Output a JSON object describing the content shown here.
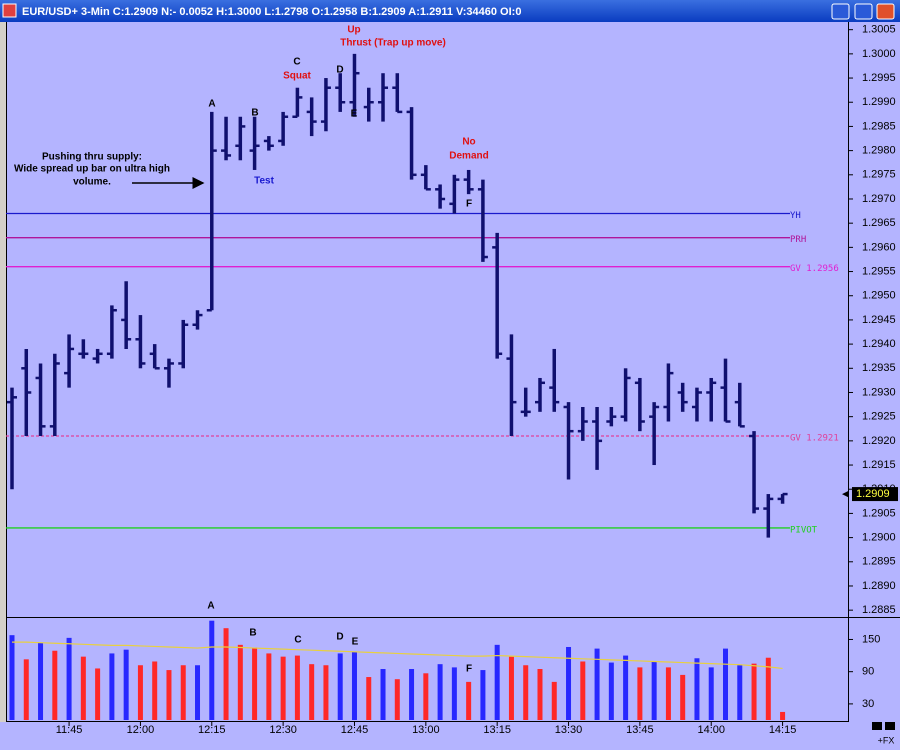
{
  "window": {
    "title": "EUR/USD+ 3-Min C:1.2909 N:- 0.0052 H:1.3000 L:1.2798 O:1.2958 B:1.2909 A:1.2911 V:34460 OI:0",
    "footer": "+FX"
  },
  "chart_data": [
    {
      "type": "ohlc",
      "color": "#10106e",
      "annotations": [
        "A",
        "B",
        "C",
        "Squat",
        "D",
        "Up",
        "Thrust (Trap up move)",
        "E",
        "Test",
        "No",
        "Demand",
        "F",
        "Pushing thru supply:",
        "Wide spread up bar on ultra high",
        "volume."
      ],
      "open": [
        1.2928,
        1.2935,
        1.2933,
        1.2923,
        1.2934,
        1.2938,
        1.2937,
        1.2938,
        1.2945,
        1.2941,
        1.2938,
        1.2935,
        1.2936,
        1.2944,
        1.2947,
        1.298,
        1.2981,
        1.298,
        1.2982,
        1.2982,
        1.2987,
        1.2988,
        1.2986,
        1.2993,
        1.299,
        1.2989,
        1.299,
        1.2993,
        1.2988,
        1.2975,
        1.2972,
        1.2969,
        1.2974,
        1.2972,
        1.296,
        1.2937,
        1.2926,
        1.2928,
        1.2931,
        1.2927,
        1.2922,
        1.2924,
        1.2924,
        1.2925,
        1.2932,
        1.2925,
        1.2927,
        1.293,
        1.2927,
        1.293,
        1.2931,
        1.2928,
        1.2921,
        1.2906,
        1.2908
      ],
      "high": [
        1.2931,
        1.2939,
        1.2936,
        1.2938,
        1.2942,
        1.2941,
        1.2939,
        1.2948,
        1.2953,
        1.2946,
        1.294,
        1.2937,
        1.2945,
        1.2947,
        1.2988,
        1.2987,
        1.2987,
        1.2987,
        1.2983,
        1.2988,
        1.2993,
        1.2991,
        1.2995,
        1.2996,
        1.3,
        1.2993,
        1.2996,
        1.2996,
        1.2989,
        1.2977,
        1.2973,
        1.2975,
        1.2976,
        1.2974,
        1.2963,
        1.2942,
        1.2931,
        1.2933,
        1.2939,
        1.2928,
        1.2927,
        1.2927,
        1.2927,
        1.2935,
        1.2933,
        1.2928,
        1.2936,
        1.2932,
        1.2931,
        1.2933,
        1.2937,
        1.2932,
        1.2922,
        1.2909,
        1.2909
      ],
      "low": [
        1.291,
        1.2921,
        1.2921,
        1.2921,
        1.2931,
        1.2937,
        1.2936,
        1.2937,
        1.2939,
        1.2935,
        1.2935,
        1.2931,
        1.2935,
        1.2943,
        1.2947,
        1.2978,
        1.2978,
        1.2976,
        1.298,
        1.2981,
        1.2987,
        1.2983,
        1.2984,
        1.2988,
        1.2987,
        1.2986,
        1.2986,
        1.2988,
        1.2974,
        1.2972,
        1.2968,
        1.2967,
        1.2971,
        1.2957,
        1.2937,
        1.2921,
        1.2925,
        1.2926,
        1.2926,
        1.2912,
        1.292,
        1.2914,
        1.2923,
        1.2924,
        1.2922,
        1.2915,
        1.2924,
        1.2926,
        1.2924,
        1.2924,
        1.2924,
        1.2923,
        1.2905,
        1.29,
        1.2907
      ],
      "close": [
        1.2929,
        1.293,
        1.2923,
        1.2936,
        1.2939,
        1.2938,
        1.2938,
        1.2947,
        1.2941,
        1.2936,
        1.2935,
        1.2936,
        1.2944,
        1.2946,
        1.298,
        1.2979,
        1.2985,
        1.2981,
        1.2981,
        1.2987,
        1.2991,
        1.2986,
        1.2993,
        1.299,
        1.2996,
        1.299,
        1.2993,
        1.2988,
        1.2975,
        1.2972,
        1.297,
        1.2974,
        1.2972,
        1.2958,
        1.2938,
        1.2928,
        1.2926,
        1.2932,
        1.2928,
        1.2922,
        1.2924,
        1.292,
        1.2925,
        1.2933,
        1.2924,
        1.2927,
        1.2934,
        1.2928,
        1.293,
        1.2932,
        1.2924,
        1.2923,
        1.2906,
        1.2908,
        1.2909
      ],
      "levels": [
        {
          "label": "YH",
          "value": 1.2967,
          "color": "#1a1acc",
          "dashed": false
        },
        {
          "label": "PRH",
          "value": 1.2962,
          "color": "#b0169a",
          "dashed": false
        },
        {
          "label": "GV 1.2956",
          "value": 1.2956,
          "color": "#e020d0",
          "dashed": false
        },
        {
          "label": "GV 1.2921",
          "value": 1.2921,
          "color": "#e0409a",
          "dashed": true
        },
        {
          "label": "PIVOT",
          "value": 1.2902,
          "color": "#20d020",
          "dashed": false
        }
      ],
      "last_price": 1.2909,
      "ylim": [
        1.2884,
        1.3007
      ],
      "yticks": [
        1.2885,
        {
          "value": 1.289,
          "label": "1.2890"
        },
        1.2895,
        {
          "value": 1.29,
          "label": "1.2900"
        },
        1.2905,
        {
          "value": 1.291,
          "label": "1.2910"
        },
        1.2915,
        {
          "value": 1.292,
          "label": "1.2920"
        },
        1.2925,
        {
          "value": 1.293,
          "label": "1.2930"
        },
        1.2935,
        {
          "value": 1.294,
          "label": "1.2940"
        },
        1.2945,
        {
          "value": 1.295,
          "label": "1.2950"
        },
        1.2955,
        {
          "value": 1.296,
          "label": "1.2960"
        },
        1.2965,
        {
          "value": 1.297,
          "label": "1.2970"
        },
        1.2975,
        {
          "value": 1.298,
          "label": "1.2980"
        },
        1.2985,
        {
          "value": 1.299,
          "label": "1.2990"
        },
        1.2995,
        {
          "value": 1.3,
          "label": "1.3000"
        },
        1.3005
      ]
    },
    {
      "type": "bar",
      "annotations": [
        "A",
        "B",
        "C",
        "D",
        "E",
        "F"
      ],
      "categories": [
        null,
        null,
        null,
        null,
        "11:45",
        null,
        null,
        null,
        null,
        "12:00",
        null,
        null,
        null,
        null,
        "12:15",
        null,
        null,
        null,
        null,
        "12:30",
        null,
        null,
        null,
        null,
        "12:45",
        null,
        null,
        null,
        null,
        "13:00",
        null,
        null,
        null,
        null,
        "13:15",
        null,
        null,
        null,
        null,
        "13:30",
        null,
        null,
        null,
        null,
        "13:45",
        null,
        null,
        null,
        null,
        "14:00",
        null,
        null,
        null,
        null,
        "14:15"
      ],
      "values": [
        158,
        113,
        144,
        129,
        153,
        118,
        96,
        124,
        131,
        102,
        109,
        93,
        102,
        102,
        185,
        171,
        140,
        135,
        124,
        118,
        120,
        104,
        102,
        124,
        127,
        80,
        95,
        76,
        95,
        87,
        104,
        98,
        71,
        93,
        140,
        118,
        102,
        95,
        71,
        136,
        109,
        133,
        107,
        120,
        98,
        109,
        98,
        84,
        115,
        98,
        133,
        102,
        105,
        116,
        15
      ],
      "colors": [
        "#2828ff",
        "#ff2828",
        "#2828ff",
        "#ff2828",
        "#2828ff",
        "#ff2828",
        "#ff2828",
        "#2828ff",
        "#2828ff",
        "#ff2828",
        "#ff2828",
        "#ff2828",
        "#ff2828",
        "#2828ff",
        "#2828ff",
        "#ff2828",
        "#ff2828",
        "#ff2828",
        "#ff2828",
        "#ff2828",
        "#ff2828",
        "#ff2828",
        "#ff2828",
        "#2828ff",
        "#2828ff",
        "#ff2828",
        "#2828ff",
        "#ff2828",
        "#2828ff",
        "#ff2828",
        "#2828ff",
        "#2828ff",
        "#ff2828",
        "#2828ff",
        "#2828ff",
        "#ff2828",
        "#ff2828",
        "#ff2828",
        "#ff2828",
        "#2828ff",
        "#ff2828",
        "#2828ff",
        "#2828ff",
        "#2828ff",
        "#ff2828",
        "#2828ff",
        "#ff2828",
        "#ff2828",
        "#2828ff",
        "#2828ff",
        "#2828ff",
        "#2828ff",
        "#ff2828",
        "#ff2828",
        "#ff2828"
      ],
      "average": [
        145,
        145,
        144,
        143,
        142,
        141,
        140,
        139,
        139,
        138,
        137,
        136,
        135,
        134,
        136,
        136,
        135,
        134,
        133,
        132,
        131,
        130,
        129,
        128,
        127,
        126,
        125,
        124,
        123,
        122,
        121,
        120,
        119,
        119,
        120,
        119,
        118,
        117,
        116,
        115,
        114,
        113,
        112,
        111,
        110,
        109,
        108,
        107,
        106,
        105,
        104,
        103,
        101,
        99,
        96
      ],
      "average_color": "#e8d040",
      "ylim": [
        0,
        190
      ],
      "yticks": [
        30,
        90,
        150
      ]
    }
  ]
}
